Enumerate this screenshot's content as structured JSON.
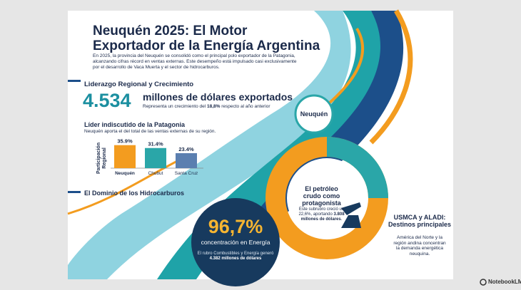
{
  "header": {
    "title_lines": [
      "Neuquén 2025: El Motor",
      "Exportador de la Energía Argentina"
    ],
    "intro": "En 2025, la provincia del Neuquén se consolidó como el principal polo exportador de la Patagonia, alcanzando cifras récord en ventas externas. Este desempeño está impulsado casi exclusivamente por el desarrollo de Vaca Muerta y el sector de hidrocarburos."
  },
  "leadership": {
    "heading": "Liderazgo Regional y Crecimiento",
    "amount": "4.534",
    "amount_caption": "millones de dólares exportados",
    "growth_note": {
      "before": "Representa un crecimiento del ",
      "highlight": "18,8%",
      "after": " respecto al año anterior"
    }
  },
  "badge": {
    "label": "Neuquén"
  },
  "patagonia": {
    "heading": "Líder indiscutido de la Patagonia",
    "subtitle": "Neuquén aporta el del total de las ventas externas de su región.",
    "chart": {
      "type": "bar",
      "y_label": "Participación Regional",
      "categories": [
        "Neuquén",
        "Chubut",
        "Santa Cruz"
      ],
      "values": [
        35.9,
        31.4,
        23.4
      ],
      "value_labels": [
        "35.9%",
        "31.4%",
        "23.4%"
      ],
      "colors": [
        "#f39c1f",
        "#2aa6a8",
        "#5b7fb0"
      ]
    }
  },
  "hydrocarbons": {
    "heading": "El Dominio de los Hidrocarburos",
    "share": "96,7%",
    "share_caption": "concentración en Energía",
    "note": {
      "before": "El rubro Combustibles y Energía generó ",
      "highlight": "4.382 millones de dólares"
    }
  },
  "crude": {
    "heading": "El petróleo crudo como protagonista",
    "note": {
      "before": "Este subrubro creció un 22,6%, aportando ",
      "highlight": "3.808 millones de dólares",
      "after": "."
    }
  },
  "destinations": {
    "heading": "USMCA y ALADI: Destinos principales",
    "note": "América del Norte y la región andina concentran la demanda energética neuquina."
  },
  "footer": {
    "brand": "NotebookLM"
  }
}
